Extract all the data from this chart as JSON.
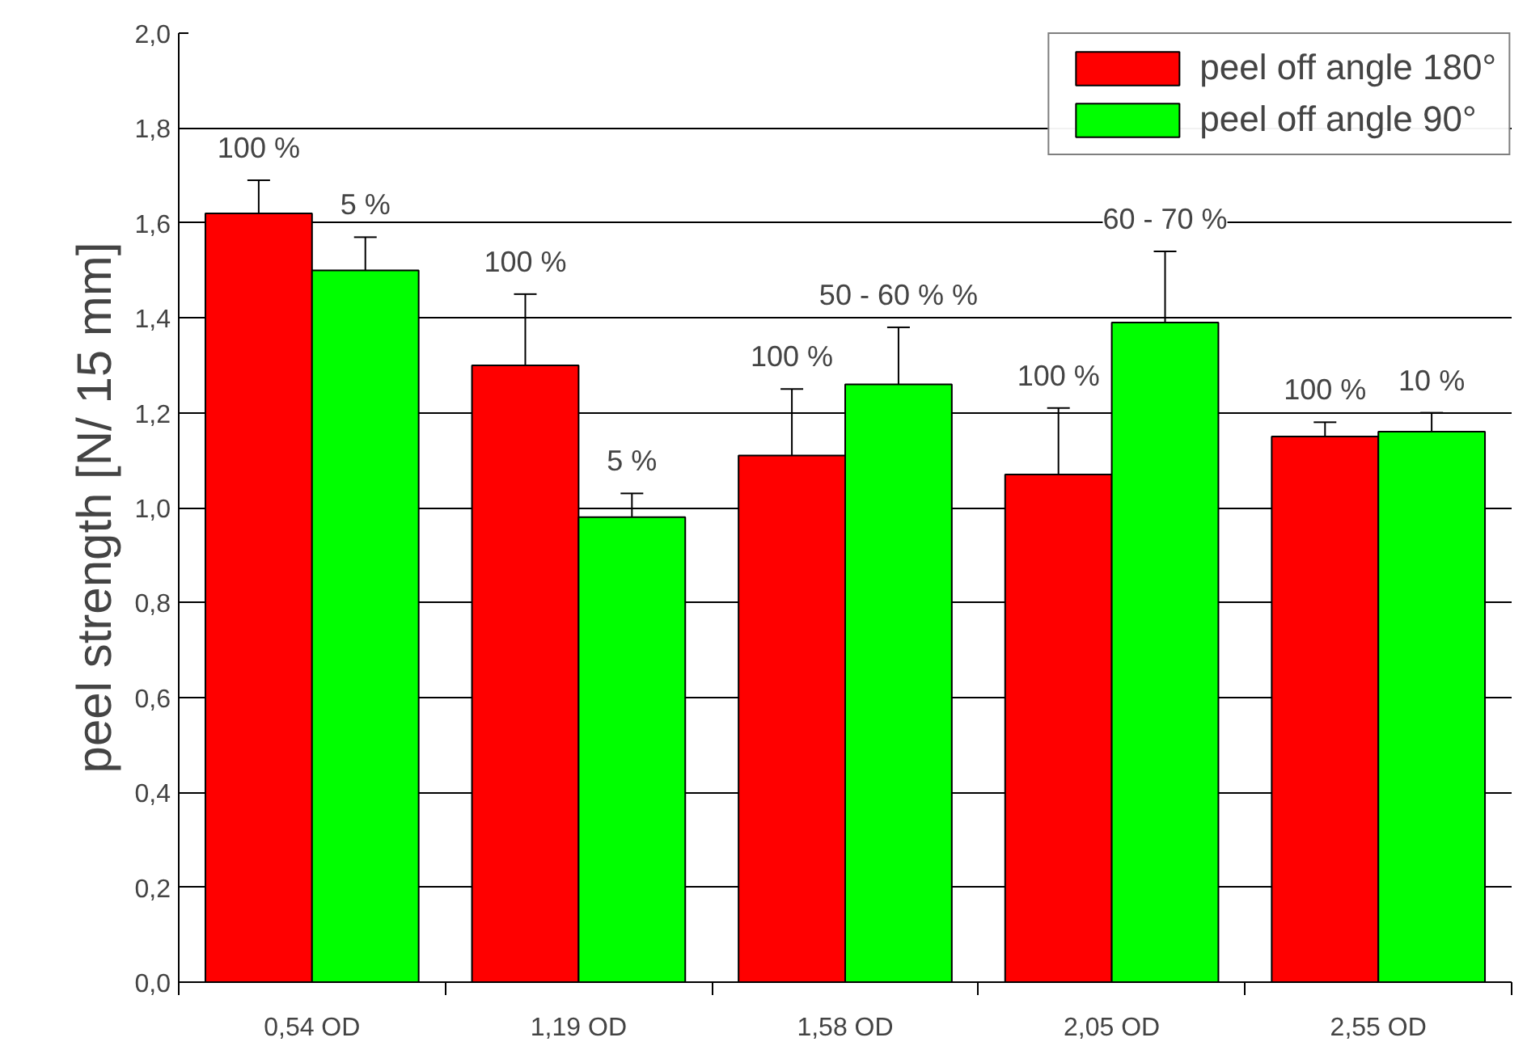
{
  "chart_data": {
    "type": "bar",
    "ylabel": "peel strength [N/ 15 mm]",
    "categories": [
      "0,54 OD",
      "1,19 OD",
      "1,58 OD",
      "2,05 OD",
      "2,55 OD"
    ],
    "series": [
      {
        "name": "peel off angle 180°",
        "color": "#ff0000",
        "values": [
          1.62,
          1.3,
          1.11,
          1.07,
          1.15
        ],
        "errors": [
          [
            1.62,
            1.69
          ],
          [
            1.3,
            1.45
          ],
          [
            1.11,
            1.25
          ],
          [
            1.07,
            1.21
          ],
          [
            1.15,
            1.18
          ]
        ]
      },
      {
        "name": "peel off angle 90°",
        "color": "#00ff00",
        "values": [
          1.5,
          0.98,
          1.26,
          1.39,
          1.16
        ],
        "errors": [
          [
            1.5,
            1.57
          ],
          [
            0.98,
            1.03
          ],
          [
            1.26,
            1.38
          ],
          [
            1.39,
            1.54
          ],
          [
            1.16,
            1.2
          ]
        ]
      }
    ],
    "annotations": [
      "100 %",
      "5 %",
      "100 %",
      "5 %",
      "100 %",
      "50 - 60 % %",
      "100 %",
      "60 - 70 %",
      "100 %",
      "10 %"
    ],
    "ylim": [
      0,
      2.0
    ],
    "yticks": [
      {
        "value": 0,
        "label": "0,0"
      },
      {
        "value": 0.2,
        "label": "0,2"
      },
      {
        "value": 0.4,
        "label": "0,4"
      },
      {
        "value": 0.6,
        "label": "0,6"
      },
      {
        "value": 0.8,
        "label": "0,8"
      },
      {
        "value": 1.0,
        "label": "1,0"
      },
      {
        "value": 1.2,
        "label": "1,2"
      },
      {
        "value": 1.4,
        "label": "1,4"
      },
      {
        "value": 1.6,
        "label": "1,6"
      },
      {
        "value": 1.8,
        "label": "1,8"
      },
      {
        "value": 2.0,
        "label": "2,0"
      }
    ],
    "grid": "y",
    "legend": "top right"
  }
}
